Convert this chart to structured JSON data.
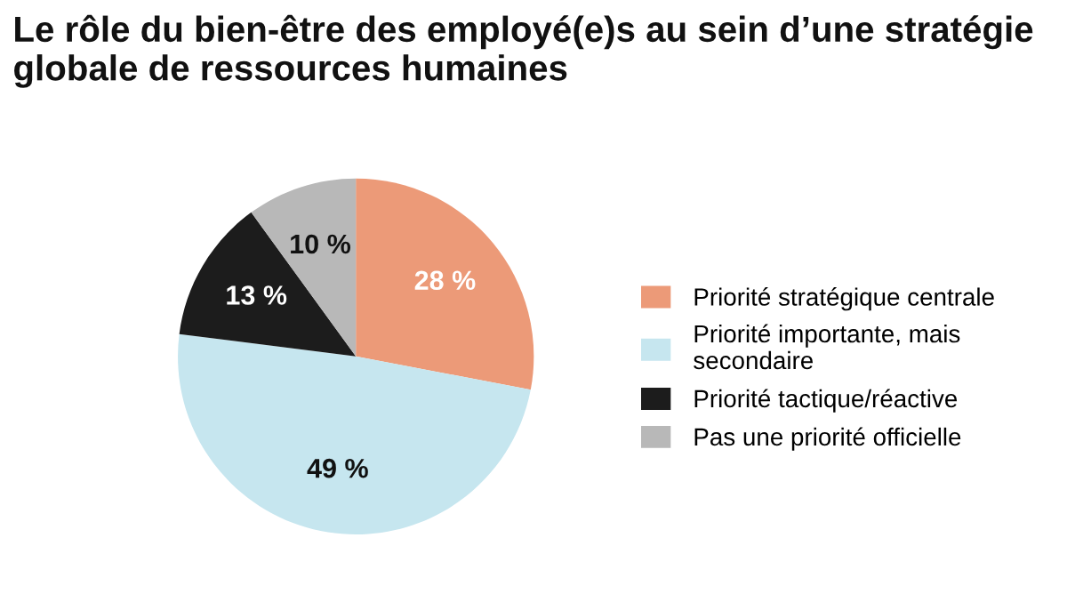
{
  "chart_data": {
    "type": "pie",
    "title": "Le rôle du bien-être des employé(e)s au sein d’une stratégie\nglobale de ressources humaines",
    "categories": [
      "Priorité stratégique centrale",
      "Priorité importante, mais\nsecondaire",
      "Priorité tactique/réactive",
      "Pas une priorité officielle"
    ],
    "values": [
      28,
      49,
      13,
      10
    ],
    "colors": [
      "#ec9a78",
      "#c6e6ef",
      "#1c1c1c",
      "#b8b8b8"
    ],
    "value_labels": [
      "28 %",
      "49 %",
      "13 %",
      "10 %"
    ],
    "legend": "right"
  }
}
